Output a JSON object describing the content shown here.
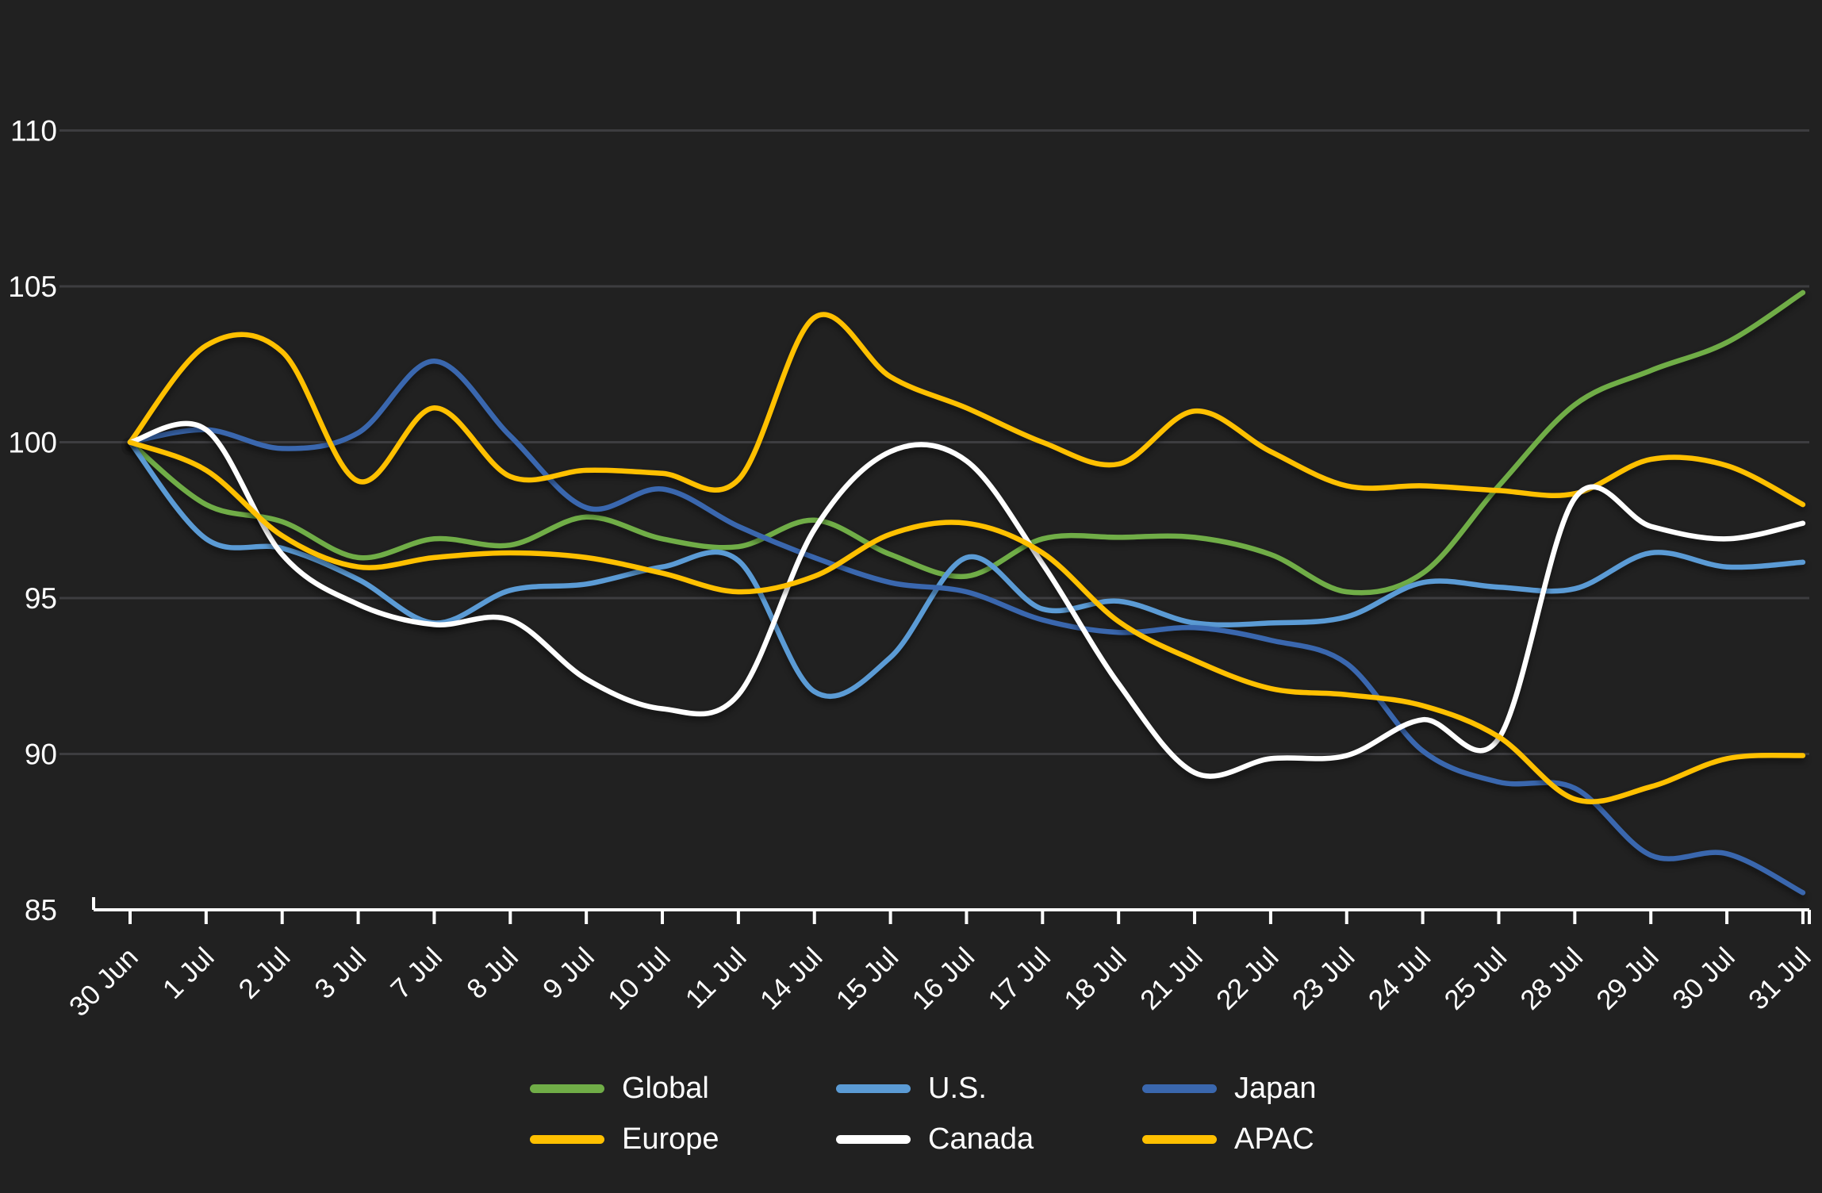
{
  "chart_data": {
    "type": "line",
    "title": "",
    "x_labels": [
      "30 Jun",
      "1 Jul",
      "2 Jul",
      "3 Jul",
      "7 Jul",
      "8 Jul",
      "9 Jul",
      "10 Jul",
      "11 Jul",
      "14 Jul",
      "15 Jul",
      "16 Jul",
      "17 Jul",
      "18 Jul",
      "21 Jul",
      "22 Jul",
      "23 Jul",
      "24 Jul",
      "25 Jul",
      "28 Jul",
      "29 Jul",
      "30 Jul",
      "31 Jul"
    ],
    "y_axis": {
      "min": 85,
      "max": 112,
      "tick_step": 5,
      "ticks": [
        110,
        105,
        100,
        95,
        90,
        85
      ]
    },
    "grid": true,
    "legend_position": "bottom",
    "colors": {
      "background": "#212121",
      "gridline": "#3d3d40",
      "axis": "#ffffff",
      "tick_label": "#ffffff"
    },
    "series": [
      {
        "name": "Global",
        "color": "#70AD47",
        "values": [
          100,
          98.0,
          97.45,
          96.3,
          96.9,
          96.7,
          97.6,
          96.9,
          96.65,
          97.5,
          96.4,
          95.7,
          96.9,
          96.95,
          96.95,
          96.4,
          95.2,
          95.8,
          98.6,
          101.2,
          102.3,
          103.2,
          104.8
        ]
      },
      {
        "name": "U.S.",
        "color": "#5B9BD5",
        "values": [
          100,
          96.9,
          96.6,
          95.6,
          94.2,
          95.25,
          95.45,
          96.0,
          96.2,
          92.0,
          93.1,
          96.3,
          94.65,
          94.9,
          94.2,
          94.2,
          94.4,
          95.5,
          95.35,
          95.3,
          96.45,
          96.0,
          96.15
        ]
      },
      {
        "name": "Japan",
        "color": "#3A67AE",
        "values": [
          100,
          100.4,
          99.8,
          100.3,
          102.6,
          100.2,
          97.9,
          98.5,
          97.3,
          96.3,
          95.5,
          95.2,
          94.3,
          93.9,
          94.05,
          93.65,
          92.9,
          90.1,
          89.1,
          88.9,
          86.75,
          86.8,
          85.55
        ]
      },
      {
        "name": "Europe",
        "color": "#FFC000",
        "values": [
          100,
          103.1,
          102.9,
          98.75,
          101.1,
          98.9,
          99.1,
          99.0,
          98.8,
          104.0,
          102.1,
          101.1,
          100.0,
          99.3,
          101.0,
          99.7,
          98.6,
          98.6,
          98.45,
          98.35,
          99.45,
          99.25,
          98.0
        ]
      },
      {
        "name": "Canada",
        "color": "#FFFFFF",
        "values": [
          100,
          100.4,
          96.4,
          94.8,
          94.15,
          94.3,
          92.4,
          91.45,
          91.9,
          97.2,
          99.7,
          99.4,
          96.1,
          92.25,
          89.4,
          89.85,
          89.95,
          91.1,
          90.5,
          98.2,
          97.3,
          96.9,
          97.4
        ]
      },
      {
        "name": "APAC",
        "color": "#FFC000",
        "values": [
          100,
          99.1,
          97.0,
          96.0,
          96.3,
          96.45,
          96.3,
          95.8,
          95.2,
          95.7,
          97.05,
          97.4,
          96.45,
          94.25,
          93.0,
          92.1,
          91.9,
          91.55,
          90.55,
          88.55,
          88.95,
          89.85,
          89.95
        ]
      }
    ]
  }
}
